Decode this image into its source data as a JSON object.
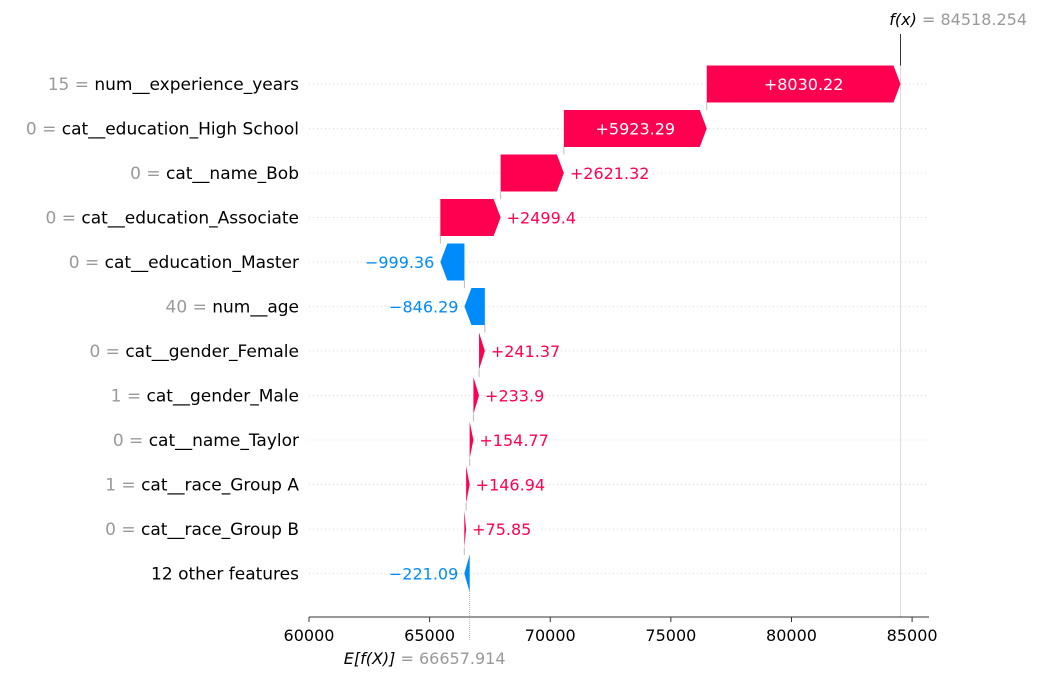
{
  "chart_data": {
    "type": "waterfall",
    "title": "",
    "xlabel": "",
    "ylabel": "",
    "xlim": [
      60000,
      85700
    ],
    "x_ticks": [
      "60000",
      "65000",
      "70000",
      "75000",
      "80000",
      "85000"
    ],
    "x_tick_values": [
      60000,
      65000,
      70000,
      75000,
      80000,
      85000
    ],
    "base_value": 66657.914,
    "base_label": "E[f(X)]",
    "base_value_text": "= 66657.914",
    "output_value": 84518.254,
    "output_label": "f(x)",
    "output_value_text": "= 84518.254",
    "positive_color": "#ff0051",
    "negative_color": "#008bfb",
    "grid": "dotted horizontal row lines",
    "features": [
      {
        "value_text": "15 =",
        "name": "num__experience_years",
        "contribution": 8030.22,
        "label": "+8030.22"
      },
      {
        "value_text": "0 =",
        "name": "cat__education_High School",
        "contribution": 5923.29,
        "label": "+5923.29"
      },
      {
        "value_text": "0 =",
        "name": "cat__name_Bob",
        "contribution": 2621.32,
        "label": "+2621.32"
      },
      {
        "value_text": "0 =",
        "name": "cat__education_Associate",
        "contribution": 2499.4,
        "label": "+2499.4"
      },
      {
        "value_text": "0 =",
        "name": "cat__education_Master",
        "contribution": -999.36,
        "label": "−999.36"
      },
      {
        "value_text": "40 =",
        "name": "num__age",
        "contribution": -846.29,
        "label": "−846.29"
      },
      {
        "value_text": "0 =",
        "name": "cat__gender_Female",
        "contribution": 241.37,
        "label": "+241.37"
      },
      {
        "value_text": "1 =",
        "name": "cat__gender_Male",
        "contribution": 233.9,
        "label": "+233.9"
      },
      {
        "value_text": "0 =",
        "name": "cat__name_Taylor",
        "contribution": 154.77,
        "label": "+154.77"
      },
      {
        "value_text": "1 =",
        "name": "cat__race_Group A",
        "contribution": 146.94,
        "label": "+146.94"
      },
      {
        "value_text": "0 =",
        "name": "cat__race_Group B",
        "contribution": 75.85,
        "label": "+75.85"
      },
      {
        "value_text": "",
        "name": "12 other features",
        "contribution": -221.09,
        "label": "−221.09"
      }
    ]
  }
}
